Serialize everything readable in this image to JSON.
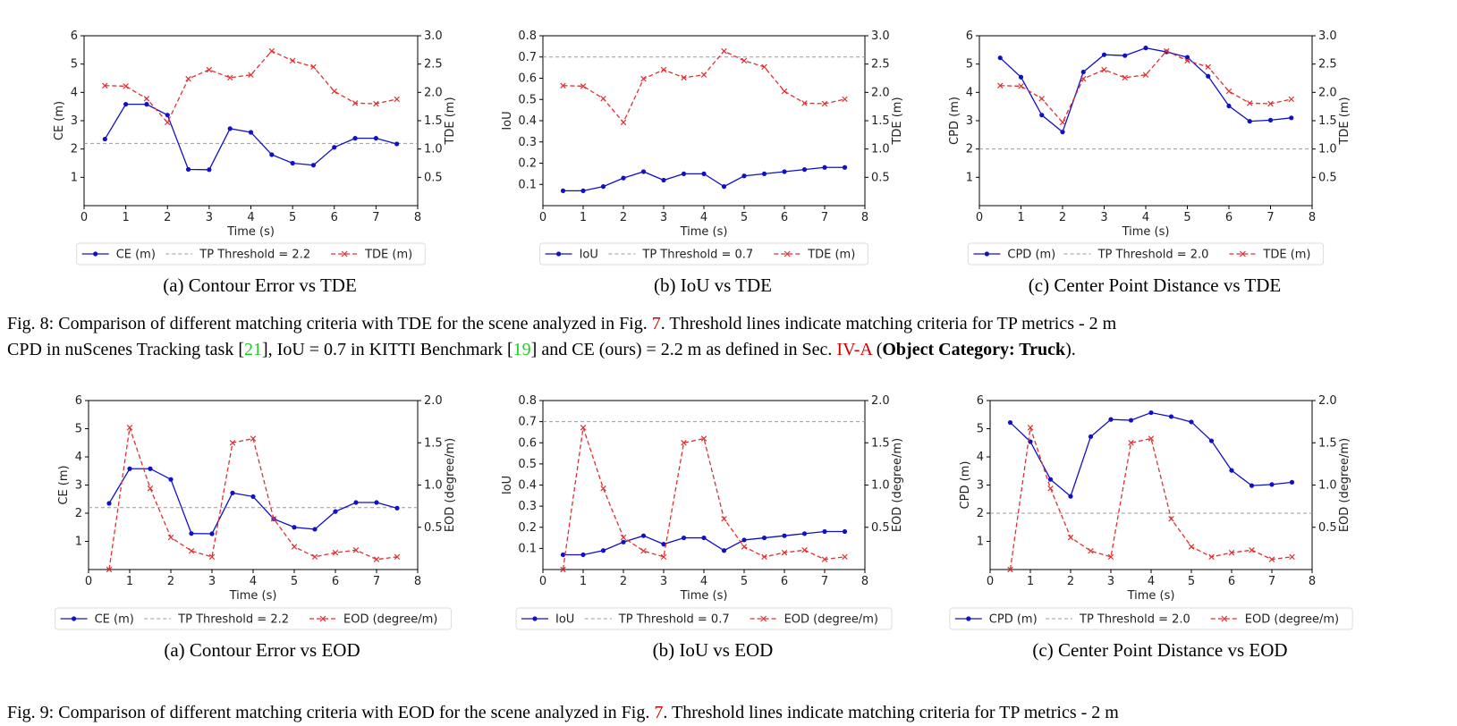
{
  "chart_data": [
    {
      "type": "line",
      "id": "8a",
      "x": [
        0.5,
        1,
        1.5,
        2,
        2.5,
        3,
        3.5,
        4,
        4.5,
        5,
        5.5,
        6,
        6.5,
        7,
        7.5
      ],
      "xlim": [
        0,
        8
      ],
      "xticks": [
        0,
        1,
        2,
        3,
        4,
        5,
        6,
        7,
        8
      ],
      "xlabel": "Time (s)",
      "ylabel": "CE (m)",
      "ylim": [
        0,
        6
      ],
      "yticks": [
        1,
        2,
        3,
        4,
        5,
        6
      ],
      "y2label": "TDE (m)",
      "y2lim": [
        0,
        3
      ],
      "y2ticks": [
        0.5,
        1.0,
        1.5,
        2.0,
        2.5,
        3.0
      ],
      "threshold": 2.2,
      "series": [
        {
          "name": "CE (m)",
          "axis": "left",
          "color": "#1010c8",
          "marker": "dot",
          "values": [
            2.35,
            3.58,
            3.58,
            3.2,
            1.28,
            1.27,
            2.72,
            2.59,
            1.8,
            1.5,
            1.43,
            2.06,
            2.38,
            2.38,
            2.18
          ]
        },
        {
          "name": "TP Threshold = 2.2",
          "axis": "left",
          "color": "#999999",
          "style": "dashed"
        },
        {
          "name": "TDE (m)",
          "axis": "right",
          "color": "#e03030",
          "marker": "x",
          "values": [
            2.12,
            2.11,
            1.89,
            1.47,
            2.24,
            2.4,
            2.26,
            2.31,
            2.73,
            2.56,
            2.45,
            2.02,
            1.81,
            1.8,
            1.88
          ]
        }
      ],
      "subcaption": "(a) Contour Error vs TDE"
    },
    {
      "type": "line",
      "id": "8b",
      "x": [
        0.5,
        1,
        1.5,
        2,
        2.5,
        3,
        3.5,
        4,
        4.5,
        5,
        5.5,
        6,
        6.5,
        7,
        7.5
      ],
      "xlim": [
        0,
        8
      ],
      "xticks": [
        0,
        1,
        2,
        3,
        4,
        5,
        6,
        7,
        8
      ],
      "xlabel": "Time (s)",
      "ylabel": "IoU",
      "ylim": [
        0,
        0.8
      ],
      "yticks": [
        0.1,
        0.2,
        0.3,
        0.4,
        0.5,
        0.6,
        0.7,
        0.8
      ],
      "y2label": "TDE (m)",
      "y2lim": [
        0,
        3
      ],
      "y2ticks": [
        0.5,
        1.0,
        1.5,
        2.0,
        2.5,
        3.0
      ],
      "threshold": 0.7,
      "series": [
        {
          "name": "IoU",
          "axis": "left",
          "color": "#1010c8",
          "marker": "dot",
          "values": [
            0.07,
            0.07,
            0.09,
            0.13,
            0.16,
            0.12,
            0.15,
            0.15,
            0.09,
            0.14,
            0.15,
            0.16,
            0.17,
            0.18,
            0.18
          ]
        },
        {
          "name": "TP Threshold = 0.7",
          "axis": "left",
          "color": "#999999",
          "style": "dashed"
        },
        {
          "name": "TDE (m)",
          "axis": "right",
          "color": "#e03030",
          "marker": "x",
          "values": [
            2.12,
            2.11,
            1.89,
            1.47,
            2.24,
            2.4,
            2.26,
            2.31,
            2.73,
            2.56,
            2.45,
            2.02,
            1.81,
            1.8,
            1.88
          ]
        }
      ],
      "subcaption": "(b) IoU vs TDE"
    },
    {
      "type": "line",
      "id": "8c",
      "x": [
        0.5,
        1,
        1.5,
        2,
        2.5,
        3,
        3.5,
        4,
        4.5,
        5,
        5.5,
        6,
        6.5,
        7,
        7.5
      ],
      "xlim": [
        0,
        8
      ],
      "xticks": [
        0,
        1,
        2,
        3,
        4,
        5,
        6,
        7,
        8
      ],
      "xlabel": "Time (s)",
      "ylabel": "CPD (m)",
      "ylim": [
        0,
        6
      ],
      "yticks": [
        1,
        2,
        3,
        4,
        5,
        6
      ],
      "y2label": "TDE (m)",
      "y2lim": [
        0,
        3
      ],
      "y2ticks": [
        0.5,
        1.0,
        1.5,
        2.0,
        2.5,
        3.0
      ],
      "threshold": 2.0,
      "series": [
        {
          "name": "CPD (m)",
          "axis": "left",
          "color": "#1010c8",
          "marker": "dot",
          "values": [
            5.22,
            4.54,
            3.2,
            2.6,
            4.72,
            5.33,
            5.3,
            5.57,
            5.43,
            5.24,
            4.57,
            3.52,
            2.98,
            3.02,
            3.1
          ]
        },
        {
          "name": "TP Threshold = 2.0",
          "axis": "left",
          "color": "#999999",
          "style": "dashed"
        },
        {
          "name": "TDE (m)",
          "axis": "right",
          "color": "#e03030",
          "marker": "x",
          "values": [
            2.12,
            2.11,
            1.89,
            1.47,
            2.24,
            2.4,
            2.26,
            2.31,
            2.73,
            2.56,
            2.45,
            2.02,
            1.81,
            1.8,
            1.88
          ]
        }
      ],
      "subcaption": "(c) Center Point Distance vs TDE"
    },
    {
      "type": "line",
      "id": "9a",
      "x": [
        0.5,
        1,
        1.5,
        2,
        2.5,
        3,
        3.5,
        4,
        4.5,
        5,
        5.5,
        6,
        6.5,
        7,
        7.5
      ],
      "xlim": [
        0,
        8
      ],
      "xticks": [
        0,
        1,
        2,
        3,
        4,
        5,
        6,
        7,
        8
      ],
      "xlabel": "Time (s)",
      "ylabel": "CE (m)",
      "ylim": [
        0,
        6
      ],
      "yticks": [
        1,
        2,
        3,
        4,
        5,
        6
      ],
      "y2label": "EOD (degree/m)",
      "y2lim": [
        0,
        2
      ],
      "y2ticks": [
        0.5,
        1.0,
        1.5,
        2.0
      ],
      "threshold": 2.2,
      "series": [
        {
          "name": "CE (m)",
          "axis": "left",
          "color": "#1010c8",
          "marker": "dot",
          "values": [
            2.35,
            3.58,
            3.58,
            3.2,
            1.28,
            1.27,
            2.72,
            2.59,
            1.8,
            1.5,
            1.43,
            2.06,
            2.38,
            2.38,
            2.18
          ]
        },
        {
          "name": "TP Threshold = 2.2",
          "axis": "left",
          "color": "#999999",
          "style": "dashed"
        },
        {
          "name": "EOD (degree/m)",
          "axis": "right",
          "color": "#e03030",
          "marker": "x",
          "values": [
            0.0,
            1.68,
            0.96,
            0.38,
            0.22,
            0.15,
            1.5,
            1.55,
            0.6,
            0.27,
            0.15,
            0.2,
            0.23,
            0.12,
            0.15
          ]
        }
      ],
      "subcaption": "(a) Contour Error vs EOD"
    },
    {
      "type": "line",
      "id": "9b",
      "x": [
        0.5,
        1,
        1.5,
        2,
        2.5,
        3,
        3.5,
        4,
        4.5,
        5,
        5.5,
        6,
        6.5,
        7,
        7.5
      ],
      "xlim": [
        0,
        8
      ],
      "xticks": [
        0,
        1,
        2,
        3,
        4,
        5,
        6,
        7,
        8
      ],
      "xlabel": "Time (s)",
      "ylabel": "IoU",
      "ylim": [
        0,
        0.8
      ],
      "yticks": [
        0.1,
        0.2,
        0.3,
        0.4,
        0.5,
        0.6,
        0.7,
        0.8
      ],
      "y2label": "EOD (degree/m)",
      "y2lim": [
        0,
        2
      ],
      "y2ticks": [
        0.5,
        1.0,
        1.5,
        2.0
      ],
      "threshold": 0.7,
      "series": [
        {
          "name": "IoU",
          "axis": "left",
          "color": "#1010c8",
          "marker": "dot",
          "values": [
            0.07,
            0.07,
            0.09,
            0.13,
            0.16,
            0.12,
            0.15,
            0.15,
            0.09,
            0.14,
            0.15,
            0.16,
            0.17,
            0.18,
            0.18
          ]
        },
        {
          "name": "TP Threshold = 0.7",
          "axis": "left",
          "color": "#999999",
          "style": "dashed"
        },
        {
          "name": "EOD (degree/m)",
          "axis": "right",
          "color": "#e03030",
          "marker": "x",
          "values": [
            0.0,
            1.68,
            0.96,
            0.38,
            0.22,
            0.15,
            1.5,
            1.55,
            0.6,
            0.27,
            0.15,
            0.2,
            0.23,
            0.12,
            0.15
          ]
        }
      ],
      "subcaption": "(b) IoU vs EOD"
    },
    {
      "type": "line",
      "id": "9c",
      "x": [
        0.5,
        1,
        1.5,
        2,
        2.5,
        3,
        3.5,
        4,
        4.5,
        5,
        5.5,
        6,
        6.5,
        7,
        7.5
      ],
      "xlim": [
        0,
        8
      ],
      "xticks": [
        0,
        1,
        2,
        3,
        4,
        5,
        6,
        7,
        8
      ],
      "xlabel": "Time (s)",
      "ylabel": "CPD (m)",
      "ylim": [
        0,
        6
      ],
      "yticks": [
        1,
        2,
        3,
        4,
        5,
        6
      ],
      "y2label": "EOD (degree/m)",
      "y2lim": [
        0,
        2
      ],
      "y2ticks": [
        0.5,
        1.0,
        1.5,
        2.0
      ],
      "threshold": 2.0,
      "series": [
        {
          "name": "CPD (m)",
          "axis": "left",
          "color": "#1010c8",
          "marker": "dot",
          "values": [
            5.22,
            4.54,
            3.2,
            2.6,
            4.72,
            5.33,
            5.3,
            5.57,
            5.43,
            5.24,
            4.57,
            3.52,
            2.98,
            3.02,
            3.1
          ]
        },
        {
          "name": "TP Threshold = 2.0",
          "axis": "left",
          "color": "#999999",
          "style": "dashed"
        },
        {
          "name": "EOD (degree/m)",
          "axis": "right",
          "color": "#e03030",
          "marker": "x",
          "values": [
            0.0,
            1.68,
            0.96,
            0.38,
            0.22,
            0.15,
            1.5,
            1.55,
            0.6,
            0.27,
            0.15,
            0.2,
            0.23,
            0.12,
            0.15
          ]
        }
      ],
      "subcaption": "(c) Center Point Distance vs EOD"
    }
  ],
  "captions": {
    "fig8": {
      "line1_a": "Fig. 8: Comparison of different matching criteria with TDE for the scene analyzed in Fig. ",
      "line1_ref": "7",
      "line1_b": ". Threshold lines indicate matching criteria for TP metrics - 2 m",
      "line2_a": "CPD in nuScenes Tracking task [",
      "line2_ref1": "21",
      "line2_b": "], IoU = 0.7 in KITTI Benchmark [",
      "line2_ref2": "19",
      "line2_c": "] and CE (ours) = 2.2 m as defined in Sec. ",
      "line2_ref3": "IV-A",
      "line2_d": " (",
      "line2_bold": "Object Category: Truck",
      "line2_e": ")."
    },
    "fig9": {
      "line1_a": "Fig. 9: Comparison of different matching criteria with EOD for the scene analyzed in Fig. ",
      "line1_ref": "7",
      "line1_b": ". Threshold lines indicate matching criteria for TP metrics - 2 m"
    }
  }
}
